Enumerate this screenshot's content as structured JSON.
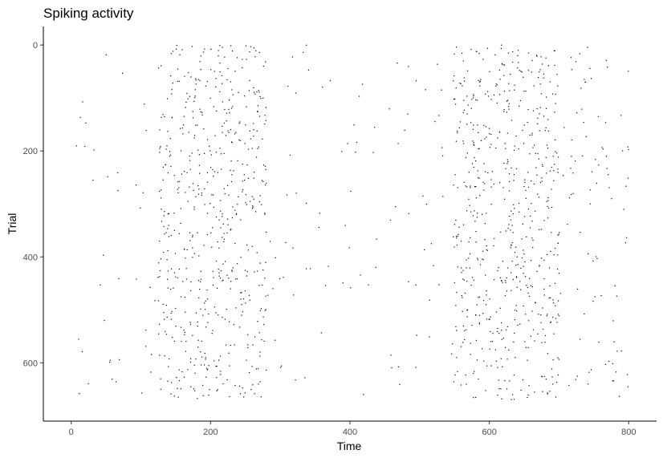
{
  "chart_data": {
    "type": "scatter",
    "title": "Spiking activity",
    "xlabel": "Time",
    "ylabel": "Trial",
    "xlim": [
      -40,
      840
    ],
    "ylim": [
      -35,
      710
    ],
    "y_reversed": true,
    "x_ticks": [
      0,
      200,
      400,
      600,
      800
    ],
    "y_ticks": [
      0,
      200,
      400,
      600
    ],
    "grid": false,
    "legend": "none",
    "marker_color": "#000000",
    "bursts": [
      {
        "x_range": [
          125,
          280
        ],
        "trial_range": [
          0,
          670
        ],
        "count": 520
      },
      {
        "x_range": [
          548,
          700
        ],
        "trial_range": [
          0,
          670
        ],
        "count": 560
      },
      {
        "x_range": [
          700,
          800
        ],
        "trial_range": [
          0,
          670
        ],
        "count": 60
      }
    ],
    "background_spike_count": 260,
    "trial_range": [
      0,
      670
    ],
    "time_range": [
      0,
      800
    ]
  }
}
